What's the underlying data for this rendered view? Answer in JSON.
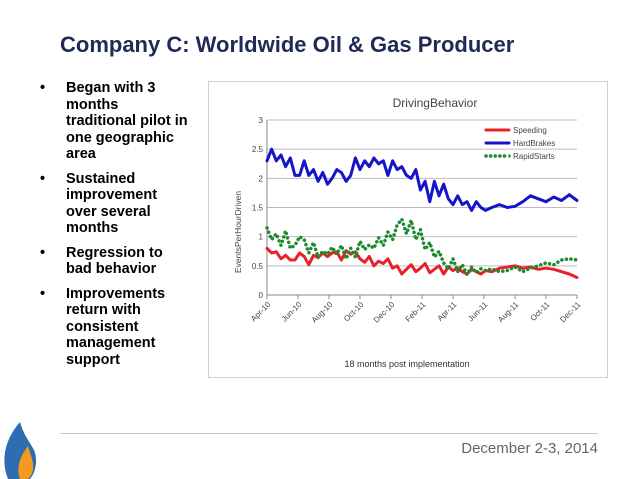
{
  "slide": {
    "title": "Company C:  Worldwide Oil & Gas Producer",
    "bullets": [
      "Began with 3 months traditional pilot in one geographic area",
      "Sustained improvement over several months",
      "Regression to bad behavior",
      "Improvements return with consistent management support"
    ],
    "bullet_char": "•",
    "date": "December 2-3, 2014",
    "colors": {
      "title": "#1f2a55",
      "logo_blue": "#2f6db3",
      "logo_orange": "#f29a1f"
    },
    "logo_icon": "flame-drop-logo"
  },
  "chart_data": {
    "type": "line",
    "title": "Driving\u0002Behavior\u0002",
    "ylabel": "Events\u0002Per\u0002Hour\u0002Driven\u0002",
    "xlabel_note": "18 months post implementation",
    "ylim": [
      0,
      3
    ],
    "yticks": [
      "0\u0002",
      "0.5\u0002",
      "1\u0002",
      "1.5\u0002",
      "2\u0002",
      "2.5\u0002",
      "3\u0002"
    ],
    "xticks": [
      "Apr-10\u0002",
      "Jun-10\u0002",
      "Aug-10\u0002",
      "Oct-10\u0002",
      "Dec-10\u0002",
      "Feb-11\u0002",
      "Apr-11\u0002",
      "Jun-11\u0002",
      "Aug-11\u0002",
      "Oct-11\u0002",
      "Dec-11\u0002"
    ],
    "x_months_range": [
      0,
      20
    ],
    "grid": true,
    "legend_position": "top-right",
    "series": [
      {
        "name": "Speeding\u0002",
        "color": "#e8202a",
        "style": "solid",
        "x": [
          0,
          0.3,
          0.6,
          0.9,
          1.2,
          1.5,
          1.8,
          2.1,
          2.4,
          2.7,
          3.0,
          3.3,
          3.6,
          3.9,
          4.2,
          4.5,
          4.8,
          5.1,
          5.4,
          5.7,
          6.0,
          6.3,
          6.6,
          6.9,
          7.2,
          7.5,
          7.8,
          8.1,
          8.4,
          8.7,
          9.0,
          9.3,
          9.6,
          9.9,
          10.2,
          10.5,
          10.8,
          11.1,
          11.4,
          11.7,
          12.0,
          12.3,
          12.6,
          12.9,
          13.2,
          13.5,
          13.8,
          14.1,
          14.5,
          15,
          15.5,
          16,
          16.5,
          17,
          17.5,
          18,
          18.5,
          19,
          19.5,
          20
        ],
        "y": [
          0.8,
          0.72,
          0.74,
          0.62,
          0.68,
          0.6,
          0.6,
          0.72,
          0.66,
          0.52,
          0.68,
          0.64,
          0.72,
          0.66,
          0.72,
          0.74,
          0.6,
          0.76,
          0.7,
          0.74,
          0.62,
          0.56,
          0.66,
          0.5,
          0.58,
          0.54,
          0.62,
          0.46,
          0.5,
          0.36,
          0.44,
          0.52,
          0.4,
          0.46,
          0.54,
          0.38,
          0.44,
          0.5,
          0.36,
          0.48,
          0.42,
          0.46,
          0.4,
          0.36,
          0.44,
          0.4,
          0.36,
          0.42,
          0.4,
          0.46,
          0.48,
          0.5,
          0.46,
          0.48,
          0.44,
          0.46,
          0.44,
          0.4,
          0.36,
          0.3
        ]
      },
      {
        "name": "Hard\u0002Brakes\u0002",
        "color": "#1515c8",
        "style": "solid",
        "x": [
          0,
          0.3,
          0.6,
          0.9,
          1.2,
          1.5,
          1.8,
          2.1,
          2.4,
          2.7,
          3.0,
          3.3,
          3.6,
          3.9,
          4.2,
          4.5,
          4.8,
          5.1,
          5.4,
          5.7,
          6.0,
          6.3,
          6.6,
          6.9,
          7.2,
          7.5,
          7.8,
          8.1,
          8.4,
          8.7,
          9.0,
          9.3,
          9.6,
          9.9,
          10.2,
          10.5,
          10.8,
          11.1,
          11.4,
          11.7,
          12.0,
          12.3,
          12.6,
          12.9,
          13.2,
          13.5,
          13.8,
          14.1,
          14.5,
          15,
          15.5,
          16,
          16.5,
          17,
          17.5,
          18,
          18.5,
          19,
          19.5,
          20
        ],
        "y": [
          2.3,
          2.5,
          2.3,
          2.4,
          2.2,
          2.35,
          2.05,
          2.05,
          2.3,
          2.05,
          2.15,
          1.95,
          2.1,
          1.9,
          2.0,
          2.15,
          2.1,
          1.95,
          2.05,
          2.35,
          2.15,
          2.3,
          2.2,
          2.35,
          2.25,
          2.3,
          2.05,
          2.3,
          2.15,
          2.2,
          2.05,
          2.0,
          2.15,
          1.8,
          1.95,
          1.6,
          1.95,
          1.7,
          1.9,
          1.65,
          1.55,
          1.7,
          1.55,
          1.6,
          1.45,
          1.6,
          1.5,
          1.45,
          1.5,
          1.55,
          1.5,
          1.52,
          1.6,
          1.7,
          1.65,
          1.6,
          1.68,
          1.62,
          1.72,
          1.62
        ]
      },
      {
        "name": "Rapid\u0002Starts\u0002",
        "color": "#1e8a2e",
        "style": "dotted",
        "x": [
          0,
          0.3,
          0.6,
          0.9,
          1.2,
          1.5,
          1.8,
          2.1,
          2.4,
          2.7,
          3.0,
          3.3,
          3.6,
          3.9,
          4.2,
          4.5,
          4.8,
          5.1,
          5.4,
          5.7,
          6.0,
          6.3,
          6.6,
          6.9,
          7.2,
          7.5,
          7.8,
          8.1,
          8.4,
          8.7,
          9.0,
          9.3,
          9.6,
          9.9,
          10.2,
          10.5,
          10.8,
          11.1,
          11.4,
          11.7,
          12.0,
          12.3,
          12.6,
          12.9,
          13.2,
          13.5,
          13.8,
          14.1,
          14.5,
          15,
          15.5,
          16,
          16.5,
          17,
          17.5,
          18,
          18.5,
          19,
          19.5,
          20
        ],
        "y": [
          1.15,
          0.95,
          1.05,
          0.85,
          1.1,
          0.8,
          0.85,
          1.0,
          0.95,
          0.72,
          0.9,
          0.65,
          0.75,
          0.7,
          0.82,
          0.7,
          0.85,
          0.62,
          0.8,
          0.65,
          0.92,
          0.78,
          0.86,
          0.8,
          0.98,
          0.85,
          1.08,
          0.95,
          1.2,
          1.3,
          1.05,
          1.28,
          0.95,
          1.12,
          0.78,
          0.9,
          0.65,
          0.75,
          0.55,
          0.45,
          0.62,
          0.4,
          0.52,
          0.35,
          0.48,
          0.38,
          0.45,
          0.42,
          0.45,
          0.4,
          0.42,
          0.48,
          0.4,
          0.46,
          0.5,
          0.55,
          0.52,
          0.6,
          0.62,
          0.6
        ]
      }
    ]
  }
}
